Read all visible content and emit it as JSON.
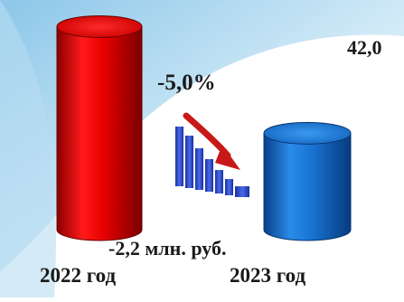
{
  "chart_data": {
    "type": "bar",
    "categories": [
      "2022 год",
      "2023 год"
    ],
    "values": [
      44.2,
      42.0
    ],
    "value_labels": [
      "",
      "42,0"
    ],
    "ylim": [
      0,
      50
    ],
    "title": "",
    "xlabel": "",
    "ylabel": "",
    "grid": false,
    "legend": "none",
    "colors": [
      "#e00000",
      "#1874d2"
    ],
    "annotations": {
      "change_percent": "-5,0%",
      "change_absolute": "-2,2 млн. руб."
    },
    "decoration": {
      "trend_icon": "declining-bars-icon",
      "arrow_icon": "curved-down-arrow-icon",
      "icon_color": "#2a46c8",
      "arrow_color": "#c81818"
    }
  }
}
